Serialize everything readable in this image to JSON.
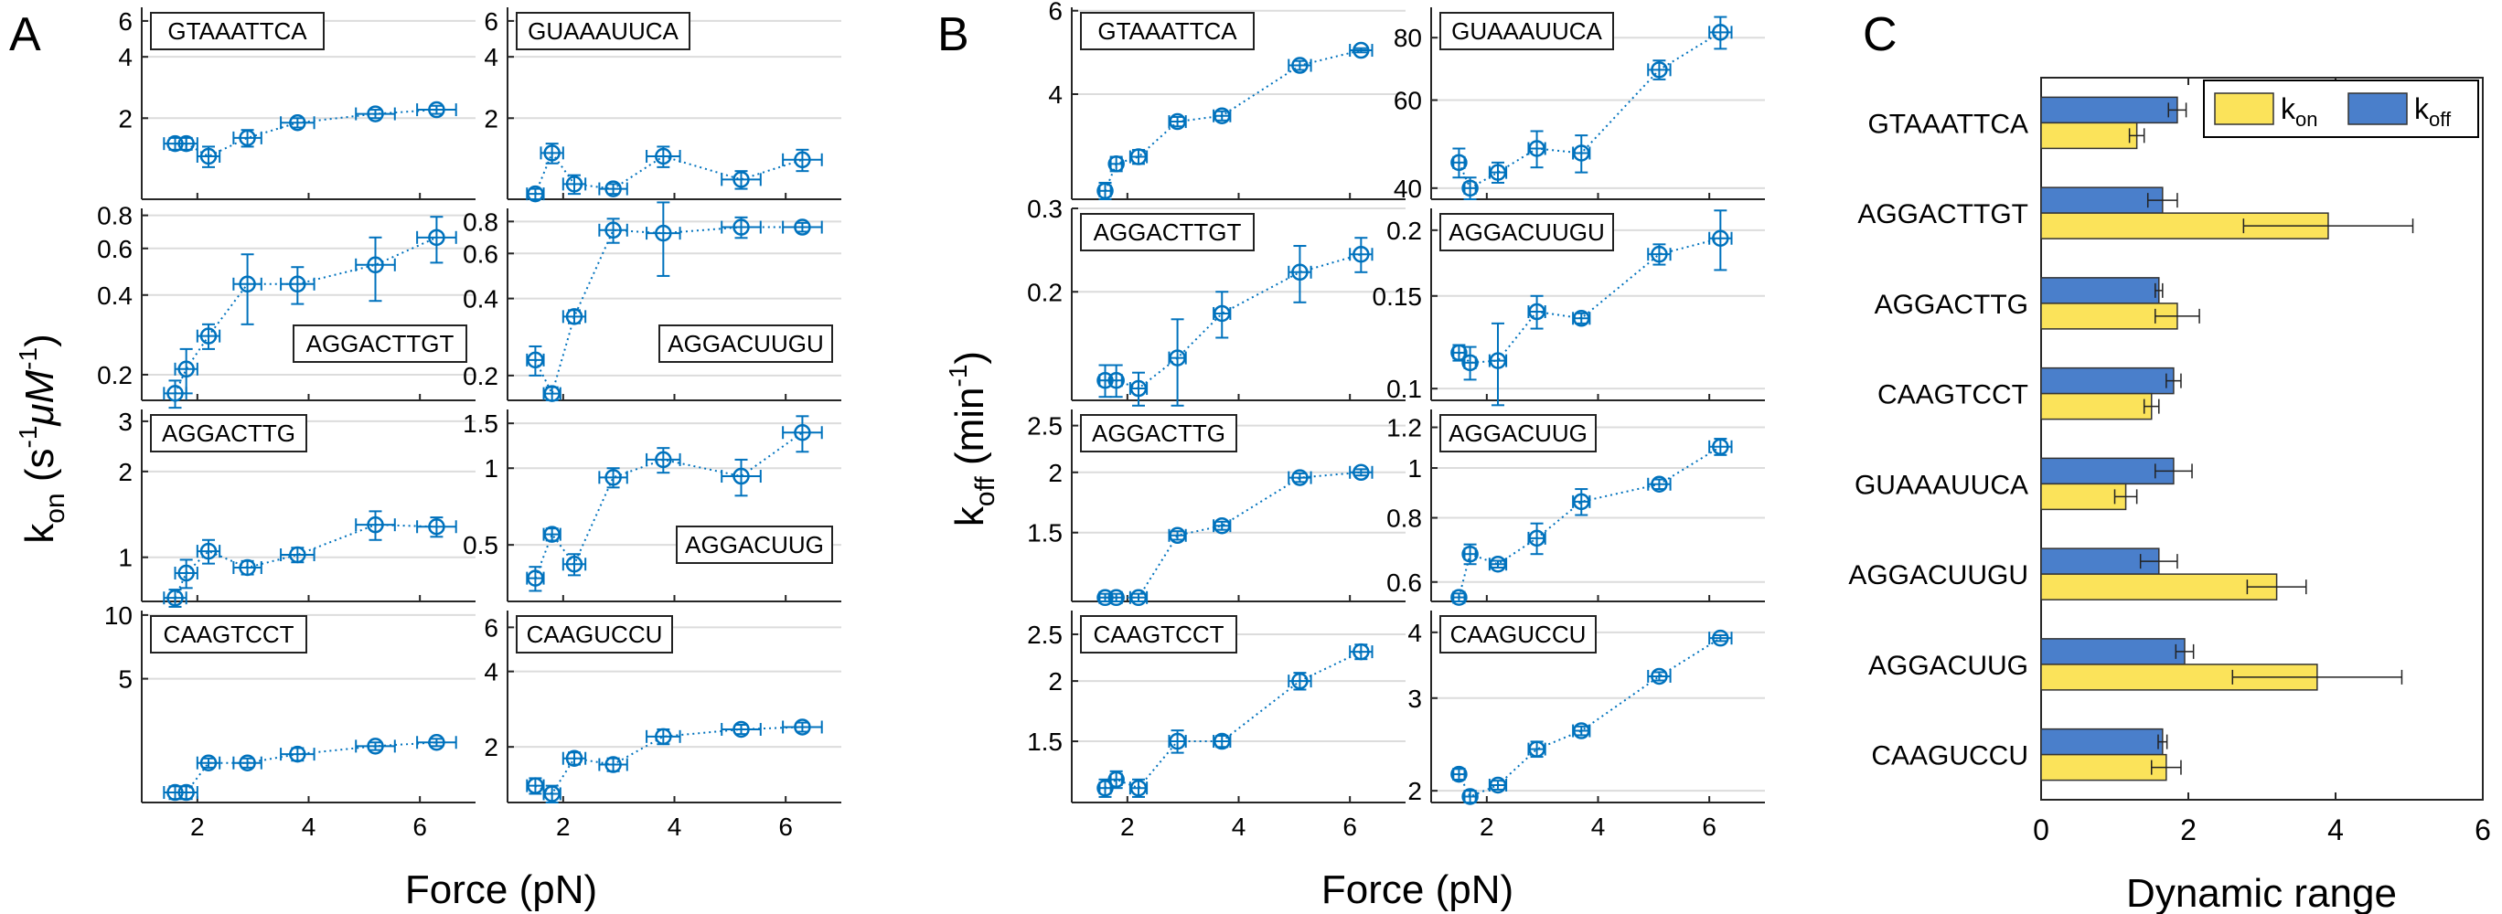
{
  "labels": {
    "panel_a": "A",
    "panel_b": "B",
    "panel_c": "C",
    "force_xlabel": "Force (pN)",
    "kon_ylabel_base": "k",
    "kon_ylabel_sub": "on",
    "kon_ylabel_unit_open": " (s",
    "kon_ylabel_exp1": "-1",
    "kon_ylabel_mu": "μM",
    "kon_ylabel_exp2": "-1",
    "kon_ylabel_close": ")",
    "koff_ylabel_base": "k",
    "koff_ylabel_sub": "off",
    "koff_ylabel_unit_open": " (min",
    "koff_ylabel_exp": "-1",
    "koff_ylabel_close": ")",
    "dr_xlabel": "Dynamic range",
    "legend_kon_base": "k",
    "legend_kon_sub": "on",
    "legend_koff_base": "k",
    "legend_koff_sub": "off"
  },
  "colors": {
    "blue": "#0072BD",
    "bar_blue": "#4A7FCB",
    "bar_yellow": "#FBE35A",
    "grid": "#DCDCDC",
    "axis": "#262626"
  },
  "chart_data": [
    {
      "type": "scatter",
      "panel": "A",
      "quantity": "kon",
      "sequence": "GTAAATTCA",
      "ylim": [
        0.8,
        7
      ],
      "yticks": [
        2,
        4,
        6
      ],
      "ytick_labels": [
        "2",
        "4",
        "6"
      ],
      "x": [
        1.6,
        1.8,
        2.2,
        2.9,
        3.8,
        5.2,
        6.3
      ],
      "y": [
        1.5,
        1.5,
        1.3,
        1.6,
        1.9,
        2.1,
        2.2
      ],
      "xerr": [
        0.2,
        0.2,
        0.2,
        0.25,
        0.3,
        0.35,
        0.35
      ],
      "yerr": [
        0.1,
        0.1,
        0.15,
        0.15,
        0.1,
        0.1,
        0.1
      ],
      "label_corner": "top-left"
    },
    {
      "type": "scatter",
      "panel": "A",
      "quantity": "kon",
      "sequence": "GUAAAUUCA",
      "ylim": [
        0.8,
        7
      ],
      "yticks": [
        2,
        4,
        6
      ],
      "ytick_labels": [
        "2",
        "4",
        "6"
      ],
      "x": [
        1.5,
        1.8,
        2.2,
        2.9,
        3.8,
        5.2,
        6.3
      ],
      "y": [
        0.85,
        1.35,
        0.95,
        0.9,
        1.3,
        1.0,
        1.25
      ],
      "xerr": [
        0.15,
        0.2,
        0.2,
        0.25,
        0.3,
        0.35,
        0.35
      ],
      "yerr": [
        0.05,
        0.15,
        0.1,
        0.05,
        0.15,
        0.1,
        0.15
      ],
      "label_corner": "top-left"
    },
    {
      "type": "scatter",
      "panel": "A",
      "quantity": "kon",
      "sequence": "AGGACTTGT",
      "ylim": [
        0.16,
        0.85
      ],
      "yticks": [
        0.2,
        0.4,
        0.6,
        0.8
      ],
      "ytick_labels": [
        "0.2",
        "0.4",
        "0.6",
        "0.8"
      ],
      "x": [
        1.6,
        1.8,
        2.2,
        2.9,
        3.8,
        5.2,
        6.3
      ],
      "y": [
        0.17,
        0.21,
        0.28,
        0.44,
        0.44,
        0.52,
        0.66
      ],
      "xerr": [
        0.2,
        0.2,
        0.2,
        0.25,
        0.3,
        0.35,
        0.35
      ],
      "yerr": [
        0.02,
        0.04,
        0.03,
        0.13,
        0.07,
        0.14,
        0.13
      ],
      "label_corner": "bottom-right"
    },
    {
      "type": "scatter",
      "panel": "A",
      "quantity": "kon",
      "sequence": "AGGACUUGU",
      "ylim": [
        0.16,
        0.9
      ],
      "yticks": [
        0.2,
        0.4,
        0.6,
        0.8
      ],
      "ytick_labels": [
        "0.2",
        "0.4",
        "0.6",
        "0.8"
      ],
      "x": [
        1.5,
        1.8,
        2.2,
        2.9,
        3.8,
        5.2,
        6.3
      ],
      "y": [
        0.23,
        0.17,
        0.34,
        0.74,
        0.72,
        0.76,
        0.76
      ],
      "xerr": [
        0.15,
        0.15,
        0.2,
        0.25,
        0.3,
        0.35,
        0.35
      ],
      "yerr": [
        0.03,
        0.01,
        0.02,
        0.08,
        0.23,
        0.07,
        0.03
      ],
      "label_corner": "bottom-right"
    },
    {
      "type": "scatter",
      "panel": "A",
      "quantity": "kon",
      "sequence": "AGGACTTG",
      "ylim": [
        0.7,
        3.3
      ],
      "yticks": [
        1,
        2,
        3
      ],
      "ytick_labels": [
        "1",
        "2",
        "3"
      ],
      "x": [
        1.6,
        1.8,
        2.2,
        2.9,
        3.8,
        5.2,
        6.3
      ],
      "y": [
        0.72,
        0.88,
        1.05,
        0.92,
        1.02,
        1.3,
        1.28
      ],
      "xerr": [
        0.2,
        0.2,
        0.2,
        0.25,
        0.3,
        0.35,
        0.35
      ],
      "yerr": [
        0.05,
        0.1,
        0.1,
        0.05,
        0.06,
        0.15,
        0.1
      ],
      "label_corner": "top-left"
    },
    {
      "type": "scatter",
      "panel": "A",
      "quantity": "kon",
      "sequence": "AGGACUUG",
      "ylim": [
        0.3,
        1.7
      ],
      "yticks": [
        0.5,
        1,
        1.5
      ],
      "ytick_labels": [
        "0.5",
        "1",
        "1.5"
      ],
      "x": [
        1.5,
        1.8,
        2.2,
        2.9,
        3.8,
        5.2,
        6.3
      ],
      "y": [
        0.37,
        0.55,
        0.42,
        0.92,
        1.08,
        0.93,
        1.38
      ],
      "xerr": [
        0.15,
        0.15,
        0.2,
        0.25,
        0.3,
        0.35,
        0.35
      ],
      "yerr": [
        0.04,
        0.03,
        0.04,
        0.08,
        0.12,
        0.15,
        0.22
      ],
      "label_corner": "bottom-right"
    },
    {
      "type": "scatter",
      "panel": "A",
      "quantity": "kon",
      "sequence": "CAAGTCCT",
      "ylim": [
        1.3,
        10.5
      ],
      "yticks": [
        5,
        10
      ],
      "ytick_labels": [
        "5",
        "10"
      ],
      "x": [
        1.6,
        1.8,
        2.2,
        2.9,
        3.8,
        5.2,
        6.3
      ],
      "y": [
        1.45,
        1.45,
        2.0,
        2.0,
        2.2,
        2.4,
        2.5
      ],
      "xerr": [
        0.2,
        0.2,
        0.2,
        0.25,
        0.3,
        0.35,
        0.35
      ],
      "yerr": [
        0.1,
        0.1,
        0.1,
        0.1,
        0.15,
        0.1,
        0.1
      ],
      "label_corner": "top-left"
    },
    {
      "type": "scatter",
      "panel": "A",
      "quantity": "kon",
      "sequence": "CAAGUCCU",
      "ylim": [
        1.2,
        7
      ],
      "yticks": [
        2,
        4,
        6
      ],
      "ytick_labels": [
        "2",
        "4",
        "6"
      ],
      "x": [
        1.5,
        1.8,
        2.2,
        2.9,
        3.8,
        5.2,
        6.3
      ],
      "y": [
        1.4,
        1.3,
        1.8,
        1.7,
        2.2,
        2.35,
        2.4
      ],
      "xerr": [
        0.15,
        0.15,
        0.2,
        0.25,
        0.3,
        0.35,
        0.35
      ],
      "yerr": [
        0.1,
        0.1,
        0.1,
        0.1,
        0.15,
        0.1,
        0.1
      ],
      "label_corner": "top-left"
    },
    {
      "type": "scatter",
      "panel": "B",
      "quantity": "koff",
      "sequence": "GTAAATTCA",
      "ylim": [
        2.4,
        6.1
      ],
      "yticks": [
        4,
        6
      ],
      "ytick_labels": [
        "4",
        "6"
      ],
      "x": [
        1.6,
        1.8,
        2.2,
        2.9,
        3.7,
        5.1,
        6.2
      ],
      "y": [
        2.5,
        2.85,
        2.95,
        3.5,
        3.6,
        4.6,
        4.95
      ],
      "xerr": [
        0.1,
        0.1,
        0.15,
        0.15,
        0.15,
        0.2,
        0.2
      ],
      "yerr": [
        0.1,
        0.1,
        0.1,
        0.08,
        0.08,
        0.1,
        0.05
      ],
      "label_corner": "top-left"
    },
    {
      "type": "scatter",
      "panel": "B",
      "quantity": "koff",
      "sequence": "GUAAAUUCA",
      "ylim": [
        38,
        92
      ],
      "yticks": [
        40,
        60,
        80
      ],
      "ytick_labels": [
        "40",
        "60",
        "80"
      ],
      "x": [
        1.5,
        1.7,
        2.2,
        2.9,
        3.7,
        5.1,
        6.2
      ],
      "y": [
        45,
        40,
        43,
        48,
        47,
        69,
        82
      ],
      "xerr": [
        0.1,
        0.1,
        0.15,
        0.15,
        0.15,
        0.2,
        0.2
      ],
      "yerr": [
        3,
        2,
        2,
        4,
        4,
        3,
        6
      ],
      "label_corner": "top-left"
    },
    {
      "type": "scatter",
      "panel": "B",
      "quantity": "koff",
      "sequence": "AGGACTTGT",
      "ylim": [
        0.118,
        0.3
      ],
      "yticks": [
        0.2,
        0.3
      ],
      "ytick_labels": [
        "0.2",
        "0.3"
      ],
      "x": [
        1.6,
        1.8,
        2.2,
        2.9,
        3.7,
        5.1,
        6.2
      ],
      "y": [
        0.13,
        0.13,
        0.125,
        0.145,
        0.18,
        0.22,
        0.24
      ],
      "xerr": [
        0.1,
        0.1,
        0.15,
        0.15,
        0.15,
        0.2,
        0.2
      ],
      "yerr": [
        0.01,
        0.01,
        0.01,
        0.03,
        0.02,
        0.03,
        0.02
      ],
      "label_corner": "top-left"
    },
    {
      "type": "scatter",
      "panel": "B",
      "quantity": "koff",
      "sequence": "AGGACUUGU",
      "ylim": [
        0.095,
        0.22
      ],
      "yticks": [
        0.1,
        0.15,
        0.2
      ],
      "ytick_labels": [
        "0.1",
        "0.15",
        "0.2"
      ],
      "x": [
        1.5,
        1.7,
        2.2,
        2.9,
        3.7,
        5.1,
        6.2
      ],
      "y": [
        0.117,
        0.112,
        0.113,
        0.14,
        0.136,
        0.18,
        0.193
      ],
      "xerr": [
        0.1,
        0.1,
        0.15,
        0.15,
        0.15,
        0.2,
        0.2
      ],
      "yerr": [
        0.004,
        0.008,
        0.02,
        0.01,
        0.003,
        0.008,
        0.025
      ],
      "label_corner": "top-left"
    },
    {
      "type": "scatter",
      "panel": "B",
      "quantity": "koff",
      "sequence": "AGGACTTG",
      "ylim": [
        1.08,
        2.7
      ],
      "yticks": [
        1.5,
        2,
        2.5
      ],
      "ytick_labels": [
        "1.5",
        "2",
        "2.5"
      ],
      "x": [
        1.6,
        1.8,
        2.2,
        2.9,
        3.7,
        5.1,
        6.2
      ],
      "y": [
        1.1,
        1.1,
        1.1,
        1.48,
        1.55,
        1.95,
        2.0
      ],
      "xerr": [
        0.1,
        0.1,
        0.15,
        0.15,
        0.15,
        0.2,
        0.2
      ],
      "yerr": [
        0.02,
        0.02,
        0.02,
        0.03,
        0.03,
        0.04,
        0.03
      ],
      "label_corner": "top-left"
    },
    {
      "type": "scatter",
      "panel": "B",
      "quantity": "koff",
      "sequence": "AGGACUUG",
      "ylim": [
        0.55,
        1.3
      ],
      "yticks": [
        0.6,
        0.8,
        1,
        1.2
      ],
      "ytick_labels": [
        "0.6",
        "0.8",
        "1",
        "1.2"
      ],
      "x": [
        1.5,
        1.7,
        2.2,
        2.9,
        3.7,
        5.1,
        6.2
      ],
      "y": [
        0.56,
        0.68,
        0.65,
        0.73,
        0.86,
        0.93,
        1.1
      ],
      "xerr": [
        0.1,
        0.1,
        0.15,
        0.15,
        0.15,
        0.2,
        0.2
      ],
      "yerr": [
        0.01,
        0.03,
        0.01,
        0.05,
        0.05,
        0.02,
        0.04
      ],
      "label_corner": "top-left"
    },
    {
      "type": "scatter",
      "panel": "B",
      "quantity": "koff",
      "sequence": "CAAGTCCT",
      "ylim": [
        1.12,
        2.8
      ],
      "yticks": [
        1.5,
        2,
        2.5
      ],
      "ytick_labels": [
        "1.5",
        "2",
        "2.5"
      ],
      "x": [
        1.6,
        1.8,
        2.2,
        2.9,
        3.7,
        5.1,
        6.2
      ],
      "y": [
        1.2,
        1.25,
        1.2,
        1.5,
        1.5,
        2.0,
        2.3
      ],
      "xerr": [
        0.1,
        0.1,
        0.15,
        0.15,
        0.15,
        0.2,
        0.2
      ],
      "yerr": [
        0.05,
        0.05,
        0.05,
        0.08,
        0.04,
        0.08,
        0.08
      ],
      "label_corner": "top-left"
    },
    {
      "type": "scatter",
      "panel": "B",
      "quantity": "koff",
      "sequence": "CAAGUCCU",
      "ylim": [
        1.9,
        4.4
      ],
      "yticks": [
        2,
        3,
        4
      ],
      "ytick_labels": [
        "2",
        "3",
        "4"
      ],
      "x": [
        1.5,
        1.7,
        2.2,
        2.9,
        3.7,
        5.1,
        6.2
      ],
      "y": [
        2.15,
        1.95,
        2.05,
        2.4,
        2.6,
        3.3,
        3.9
      ],
      "xerr": [
        0.1,
        0.1,
        0.15,
        0.15,
        0.15,
        0.2,
        0.2
      ],
      "yerr": [
        0.05,
        0.05,
        0.04,
        0.08,
        0.05,
        0.06,
        0.05
      ],
      "label_corner": "top-left"
    },
    {
      "type": "bar",
      "panel": "C",
      "orientation": "horizontal",
      "categories": [
        "GTAAATTCA",
        "AGGACTTGT",
        "AGGACTTG",
        "CAAGTCCT",
        "GUAAAUUCA",
        "AGGACUUGU",
        "AGGACUUG",
        "CAAGUCCU"
      ],
      "series": [
        {
          "name": "koff",
          "values": [
            1.85,
            1.65,
            1.6,
            1.8,
            1.8,
            1.6,
            1.95,
            1.65
          ],
          "err": [
            0.12,
            0.2,
            0.05,
            0.1,
            0.25,
            0.25,
            0.12,
            0.06
          ]
        },
        {
          "name": "kon",
          "values": [
            1.3,
            3.9,
            1.85,
            1.5,
            1.15,
            3.2,
            3.75,
            1.7
          ],
          "err": [
            0.1,
            1.15,
            0.3,
            0.1,
            0.15,
            0.4,
            1.15,
            0.2
          ]
        }
      ],
      "xlabel": "Dynamic range",
      "xlim": [
        0,
        6
      ],
      "xticks": [
        0,
        2,
        4,
        6
      ],
      "xtick_labels": [
        "0",
        "2",
        "4",
        "6"
      ],
      "legend": "top-right"
    }
  ],
  "force_axis": {
    "xlim": [
      1,
      7
    ],
    "ticks": [
      2,
      4,
      6
    ],
    "tick_labels": [
      "2",
      "4",
      "6"
    ]
  }
}
